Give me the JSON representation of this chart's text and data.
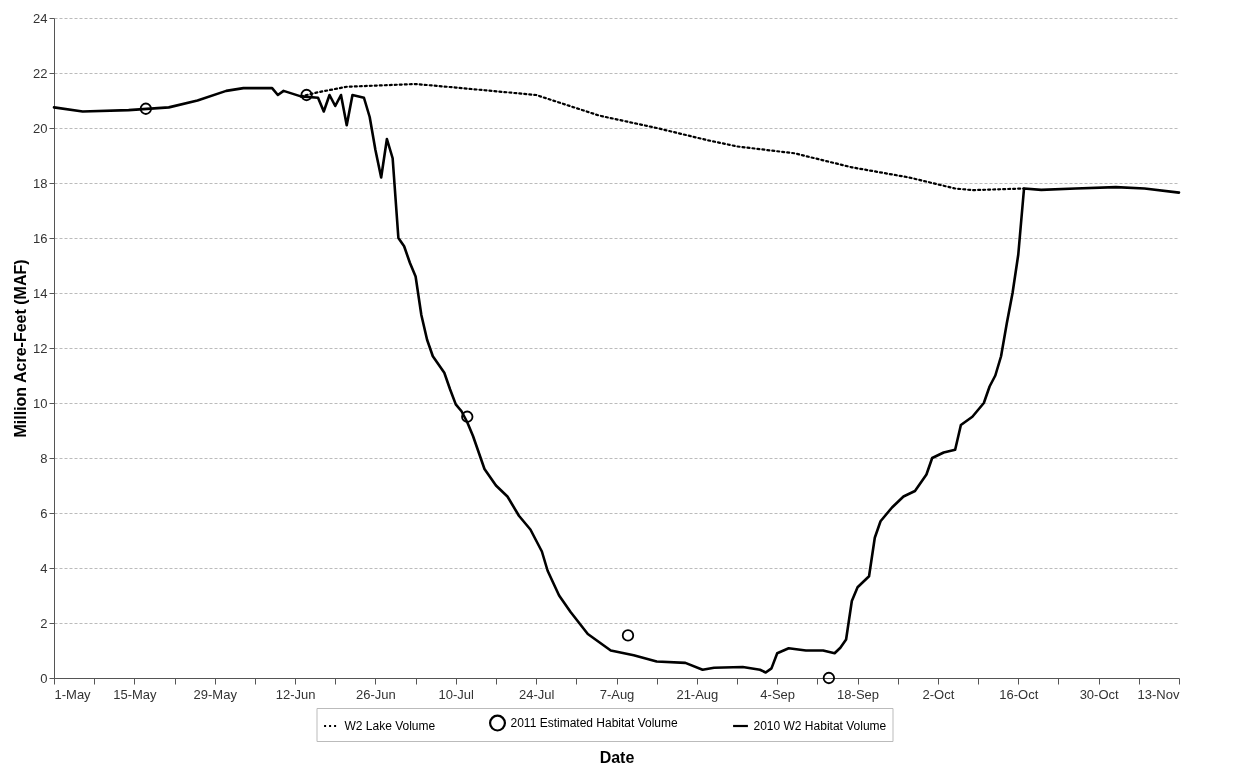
{
  "chart_data": {
    "type": "line",
    "xlabel": "Date",
    "ylabel": "Million Acre-Feet (MAF)",
    "grid": "y",
    "legend": "bottom",
    "xlim": [
      "--05-01",
      "--11-13"
    ],
    "xticks": [
      {
        "value": "--05-01",
        "label": "1-May"
      },
      {
        "value": "--05-08",
        "label": null
      },
      {
        "value": "--05-15",
        "label": "15-May"
      },
      {
        "value": "--05-22",
        "label": null
      },
      {
        "value": "--05-29",
        "label": "29-May"
      },
      {
        "value": "--06-05",
        "label": null
      },
      {
        "value": "--06-12",
        "label": "12-Jun"
      },
      {
        "value": "--06-19",
        "label": null
      },
      {
        "value": "--06-26",
        "label": "26-Jun"
      },
      {
        "value": "--07-03",
        "label": null
      },
      {
        "value": "--07-10",
        "label": "10-Jul"
      },
      {
        "value": "--07-17",
        "label": null
      },
      {
        "value": "--07-24",
        "label": "24-Jul"
      },
      {
        "value": "--07-31",
        "label": null
      },
      {
        "value": "--08-07",
        "label": "7-Aug"
      },
      {
        "value": "--08-14",
        "label": null
      },
      {
        "value": "--08-21",
        "label": "21-Aug"
      },
      {
        "value": "--08-28",
        "label": null
      },
      {
        "value": "--09-04",
        "label": "4-Sep"
      },
      {
        "value": "--09-11",
        "label": null
      },
      {
        "value": "--09-18",
        "label": "18-Sep"
      },
      {
        "value": "--09-25",
        "label": null
      },
      {
        "value": "--10-02",
        "label": "2-Oct"
      },
      {
        "value": "--10-09",
        "label": null
      },
      {
        "value": "--10-16",
        "label": "16-Oct"
      },
      {
        "value": "--10-23",
        "label": null
      },
      {
        "value": "--10-30",
        "label": "30-Oct"
      },
      {
        "value": "--11-06",
        "label": null
      },
      {
        "value": "--11-13",
        "label": "13-Nov"
      }
    ],
    "ylim": [
      0,
      24
    ],
    "yticks": [
      0,
      2,
      4,
      6,
      8,
      10,
      12,
      14,
      16,
      18,
      20,
      22,
      24
    ],
    "series": [
      {
        "name": "W2 Lake Volume",
        "line_style": "dotted",
        "color": "#000000",
        "x": [
          "--06-13",
          "--06-16",
          "--06-21",
          "--07-03",
          "--07-10",
          "--07-24",
          "--08-04",
          "--08-14",
          "--08-23",
          "--08-28",
          "--09-07",
          "--09-17",
          "--09-27",
          "--10-05",
          "--10-08",
          "--10-17"
        ],
        "values": [
          21.15,
          21.3,
          21.5,
          21.6,
          21.47,
          21.2,
          20.45,
          20.0,
          19.55,
          19.33,
          19.08,
          18.57,
          18.2,
          17.8,
          17.74,
          17.8
        ]
      },
      {
        "name": "2011 Estimated Habitat Volume",
        "type": "scatter",
        "marker": "circle",
        "color": "#000000",
        "x": [
          "--05-17",
          "--06-14",
          "--07-12",
          "--08-09",
          "--09-13"
        ],
        "values": [
          20.7,
          21.2,
          9.5,
          1.55,
          0
        ]
      },
      {
        "name": "2010 W2 Habitat Volume",
        "line_style": "solid",
        "color": "#000000",
        "x": [
          "--05-01",
          "--05-06",
          "--05-14",
          "--05-21",
          "--05-26",
          "--05-31",
          "--06-03",
          "--06-08",
          "--06-09",
          "--06-10",
          "--06-13",
          "--06-16",
          "--06-17",
          "--06-18",
          "--06-19",
          "--06-20",
          "--06-21",
          "--06-22",
          "--06-24",
          "--06-25",
          "--06-26",
          "--06-27",
          "--06-28",
          "--06-29",
          "--06-30",
          "--07-01",
          "--07-02",
          "--07-03",
          "--07-04",
          "--07-05",
          "--07-06",
          "--07-07",
          "--07-08",
          "--07-09",
          "--07-10",
          "--07-11",
          "--07-12",
          "--07-13",
          "--07-15",
          "--07-17",
          "--07-19",
          "--07-21",
          "--07-23",
          "--07-24",
          "--07-25",
          "--07-26",
          "--07-28",
          "--07-30",
          "--08-02",
          "--08-06",
          "--08-10",
          "--08-14",
          "--08-19",
          "--08-22",
          "--08-24",
          "--08-29",
          "--09-01",
          "--09-02",
          "--09-03",
          "--09-04",
          "--09-06",
          "--09-09",
          "--09-12",
          "--09-14",
          "--09-15",
          "--09-16",
          "--09-17",
          "--09-18",
          "--09-20",
          "--09-21",
          "--09-22",
          "--09-24",
          "--09-26",
          "--09-28",
          "--09-30",
          "--10-01",
          "--10-03",
          "--10-05",
          "--10-06",
          "--10-08",
          "--10-10",
          "--10-11",
          "--10-12",
          "--10-13",
          "--10-14",
          "--10-15",
          "--10-16",
          "--10-17",
          "--10-20",
          "--10-26",
          "--11-02",
          "--11-07",
          "--11-13"
        ],
        "values": [
          20.75,
          20.6,
          20.65,
          20.75,
          21.0,
          21.35,
          21.45,
          21.45,
          21.2,
          21.35,
          21.15,
          21.1,
          20.6,
          21.2,
          20.8,
          21.2,
          20.1,
          21.2,
          21.1,
          20.4,
          19.2,
          18.2,
          19.6,
          18.9,
          16.0,
          15.7,
          15.1,
          14.6,
          13.2,
          12.3,
          11.7,
          11.4,
          11.1,
          10.5,
          9.95,
          9.7,
          9.3,
          8.8,
          7.6,
          7.0,
          6.6,
          5.9,
          5.4,
          5.0,
          4.6,
          3.9,
          3.0,
          2.4,
          1.6,
          1.0,
          0.83,
          0.6,
          0.55,
          0.3,
          0.37,
          0.4,
          0.3,
          0.2,
          0.35,
          0.9,
          1.08,
          1.0,
          1.0,
          0.9,
          1.1,
          1.4,
          2.8,
          3.3,
          3.7,
          5.1,
          5.7,
          6.2,
          6.6,
          6.8,
          7.4,
          8.0,
          8.2,
          8.3,
          9.2,
          9.5,
          10.0,
          10.6,
          11.0,
          11.7,
          12.9,
          14.0,
          15.4,
          17.8,
          17.75,
          17.8,
          17.85,
          17.8,
          17.65
        ]
      }
    ]
  }
}
